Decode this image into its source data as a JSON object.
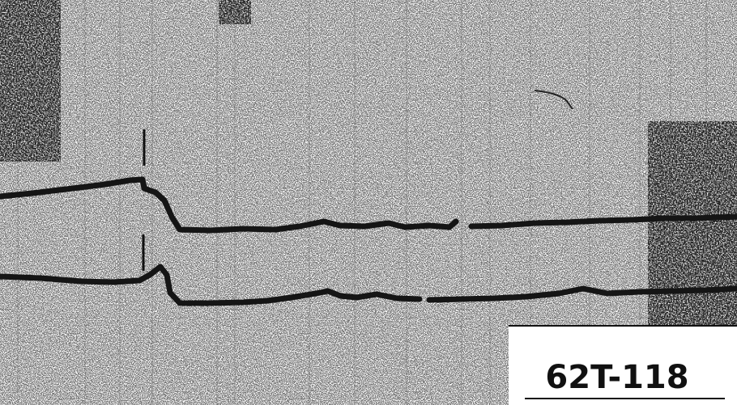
{
  "figure": {
    "label": "62T-118"
  }
}
